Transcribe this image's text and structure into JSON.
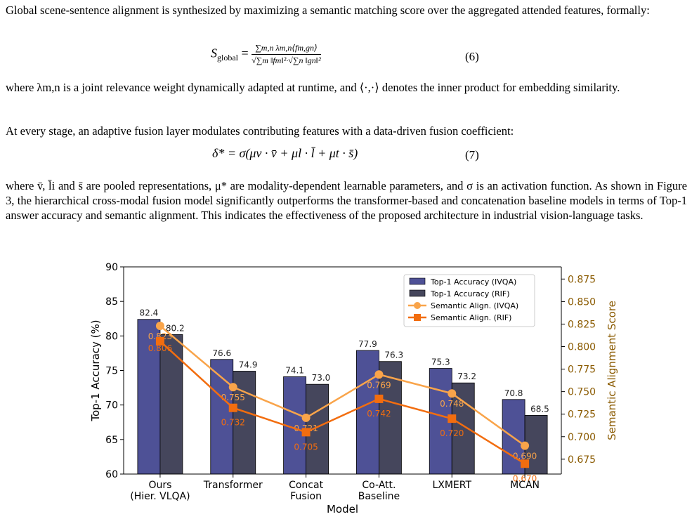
{
  "para1": "Global scene-sentence alignment is synthesized by maximizing a semantic matching score over the aggregated attended features, formally:",
  "eq6": {
    "lhs": "S",
    "lhs_sub": "global",
    "numerator": "∑m,n λm,n⟨fm,gn⟩",
    "denominator": "√∑m ‖fm‖²·√∑n ‖gn‖²",
    "number": "(6)"
  },
  "para2": "where λm,n is a joint relevance weight dynamically adapted at runtime, and ⟨·,·⟩ denotes the inner product for embedding similarity.",
  "para3": "At every stage, an adaptive fusion layer modulates contributing features with a data-driven fusion coefficient:",
  "eq7": {
    "expr": "δ* = σ(μv · v̄ + μl · l̄ + μt · s̄)",
    "number": "(7)"
  },
  "para4": "where v̄, l̄i and s̄ are pooled representations, μ* are modality-dependent learnable parameters, and σ is an activation function. As shown in Figure 3, the hierarchical cross-modal fusion model significantly outperforms the transformer-based and concatenation baseline models in terms of Top-1 answer accuracy and semantic alignment. This indicates the effectiveness of the proposed architecture in industrial vision-language tasks.",
  "chart_data": {
    "type": "bar",
    "categories": [
      [
        "Ours",
        "(Hier. VLQA)"
      ],
      [
        "Transformer"
      ],
      [
        "Concat",
        "Fusion"
      ],
      [
        "Co-Att.",
        "Baseline"
      ],
      [
        "LXMERT"
      ],
      [
        "MCAN"
      ]
    ],
    "xlabel": "Model",
    "ylabel": "Top-1 Accuracy (%)",
    "y2label": "Semantic Alignment Score",
    "ylim": [
      60,
      90
    ],
    "yticks": [
      60,
      65,
      70,
      75,
      80,
      85,
      90
    ],
    "y2lim": [
      0.6585,
      0.8885
    ],
    "y2ticks": [
      "0.675",
      "0.700",
      "0.725",
      "0.750",
      "0.775",
      "0.800",
      "0.825",
      "0.850",
      "0.875"
    ],
    "legend_position": "top-right",
    "series": [
      {
        "name": "Top-1 Accuracy (IVQA)",
        "kind": "bar",
        "color": "#4e5196",
        "values": [
          82.4,
          76.6,
          74.1,
          77.9,
          75.3,
          70.8
        ],
        "labels": [
          "82.4",
          "76.6",
          "74.1",
          "77.9",
          "75.3",
          "70.8"
        ]
      },
      {
        "name": "Top-1 Accuracy (RIF)",
        "kind": "bar",
        "color": "#45465c",
        "values": [
          80.2,
          74.9,
          73.0,
          76.3,
          73.2,
          68.5
        ],
        "labels": [
          "80.2",
          "74.9",
          "73.0",
          "76.3",
          "73.2",
          "68.5"
        ]
      },
      {
        "name": "Semantic Align. (IVQA)",
        "kind": "line",
        "marker": "circle",
        "color": "#f9a44a",
        "values": [
          0.823,
          0.755,
          0.721,
          0.769,
          0.748,
          0.69
        ],
        "labels": [
          "0.823",
          "0.755",
          "0.721",
          "0.769",
          "0.748",
          "0.690"
        ]
      },
      {
        "name": "Semantic Align. (RIF)",
        "kind": "line",
        "marker": "square",
        "color": "#f26d0f",
        "values": [
          0.806,
          0.732,
          0.705,
          0.742,
          0.72,
          0.67
        ],
        "labels": [
          "0.806",
          "0.732",
          "0.705",
          "0.742",
          "0.720",
          "0.670"
        ]
      }
    ]
  }
}
